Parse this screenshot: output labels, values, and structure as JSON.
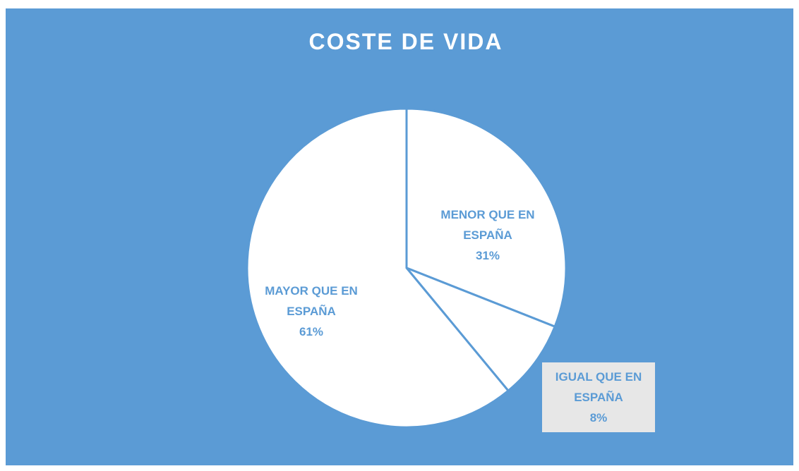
{
  "chart_data": {
    "type": "pie",
    "title": "COSTE DE VIDA",
    "categories": [
      "MENOR QUE EN ESPAÑA",
      "IGUAL QUE EN ESPAÑA",
      "MAYOR QUE EN ESPAÑA"
    ],
    "values": [
      31,
      8,
      61
    ],
    "value_labels": [
      "31%",
      "8%",
      "61%"
    ],
    "color": "#ffffff",
    "background": "#5b9bd5",
    "label_color": "#5b9bd5"
  }
}
